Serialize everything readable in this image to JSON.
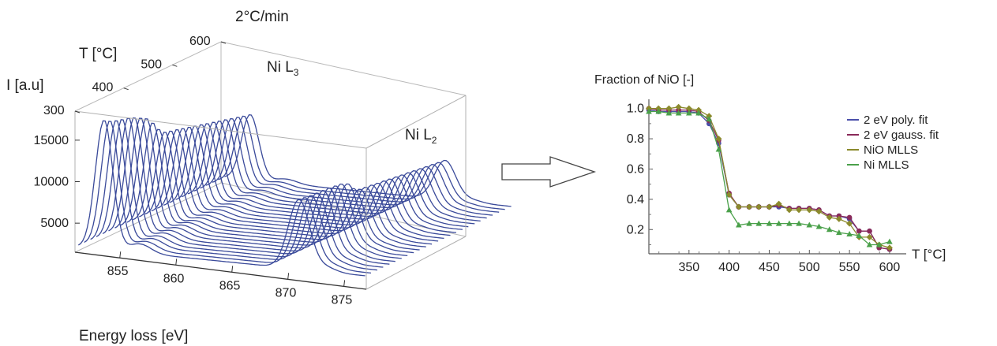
{
  "chart_data": [
    {
      "type": "line",
      "title": "2°C/min",
      "xlabel": "Energy loss [eV]",
      "ylabel": "T [°C]",
      "zlabel": "I [a.u]",
      "x_ticks": [
        "855",
        "860",
        "865",
        "870",
        "875"
      ],
      "y_ticks": [
        "300",
        "400",
        "500",
        "600"
      ],
      "z_ticks": [
        "5000",
        "10000",
        "15000"
      ],
      "xlim": [
        851,
        877
      ],
      "ylim": [
        300,
        600
      ],
      "zlim": [
        1500,
        18500
      ],
      "annotations": [
        {
          "text": "Ni L",
          "sub": "3"
        },
        {
          "text": "Ni L",
          "sub": "2"
        }
      ],
      "line_color": "#3a4a9a",
      "spectra_temperatures": [
        300,
        312,
        325,
        337,
        350,
        362,
        375,
        387,
        400,
        412,
        425,
        437,
        450,
        462,
        475,
        487,
        500,
        512,
        525,
        537,
        550,
        562,
        575,
        587,
        600
      ],
      "peak_L3_intensity": [
        15600,
        15200,
        14900,
        14700,
        14500,
        14200,
        13800,
        13400,
        12500,
        11400,
        10700,
        10500,
        10300,
        10100,
        9900,
        9700,
        9500,
        9300,
        9100,
        8900,
        8700,
        8500,
        8300,
        8100,
        7900
      ],
      "peak_L2_intensity": [
        8400,
        8300,
        8200,
        8150,
        8100,
        8050,
        7950,
        7850,
        7500,
        6600,
        6150,
        6050,
        5950,
        5850,
        5750,
        5650,
        5550,
        5450,
        5350,
        5250,
        5150,
        5050,
        4950,
        4850,
        4750
      ]
    },
    {
      "type": "line",
      "title": "Fraction of NiO [-]",
      "xlabel": "T [°C]",
      "ylabel": "",
      "xlim": [
        300,
        605
      ],
      "ylim": [
        0.04,
        1.04
      ],
      "x_ticks": [
        350,
        400,
        450,
        500,
        550,
        600
      ],
      "y_ticks": [
        "0.2",
        "0.4",
        "0.6",
        "0.8",
        "1.0"
      ],
      "y_tick_values": [
        0.2,
        0.4,
        0.6,
        0.8,
        1.0
      ],
      "legend_position": "right",
      "x": [
        300,
        312,
        325,
        337,
        350,
        362,
        375,
        387,
        400,
        412,
        425,
        437,
        450,
        462,
        475,
        487,
        500,
        512,
        525,
        537,
        550,
        562,
        575,
        587,
        600
      ],
      "series": [
        {
          "name": "2 eV poly. fit",
          "color": "#4b4faa",
          "marker": "circle",
          "values": [
            0.99,
            0.98,
            0.98,
            0.98,
            0.98,
            0.97,
            0.9,
            0.77,
            0.43,
            0.35,
            0.35,
            0.35,
            0.35,
            0.35,
            0.34,
            0.34,
            0.34,
            0.33,
            0.29,
            0.29,
            0.27,
            0.19,
            0.19,
            0.08,
            0.07
          ]
        },
        {
          "name": "2 eV gauss. fit",
          "color": "#8a2a5a",
          "marker": "circle",
          "values": [
            1.0,
            0.99,
            0.99,
            0.99,
            0.99,
            0.98,
            0.92,
            0.79,
            0.44,
            0.35,
            0.35,
            0.35,
            0.35,
            0.36,
            0.34,
            0.34,
            0.34,
            0.33,
            0.29,
            0.29,
            0.28,
            0.19,
            0.19,
            0.08,
            0.07
          ]
        },
        {
          "name": "NiO MLLS",
          "color": "#8b8a2c",
          "marker": "diamond",
          "values": [
            1.0,
            1.0,
            1.0,
            1.01,
            1.0,
            0.99,
            0.95,
            0.8,
            0.43,
            0.35,
            0.35,
            0.35,
            0.35,
            0.37,
            0.33,
            0.33,
            0.33,
            0.32,
            0.28,
            0.27,
            0.24,
            0.15,
            0.15,
            0.1,
            0.08
          ]
        },
        {
          "name": "Ni MLLS",
          "color": "#4aa04a",
          "marker": "triangle",
          "values": [
            0.98,
            0.98,
            0.97,
            0.97,
            0.97,
            0.97,
            0.93,
            0.73,
            0.33,
            0.23,
            0.24,
            0.24,
            0.24,
            0.24,
            0.24,
            0.24,
            0.23,
            0.22,
            0.2,
            0.18,
            0.17,
            0.16,
            0.1,
            0.1,
            0.12
          ]
        }
      ]
    }
  ]
}
